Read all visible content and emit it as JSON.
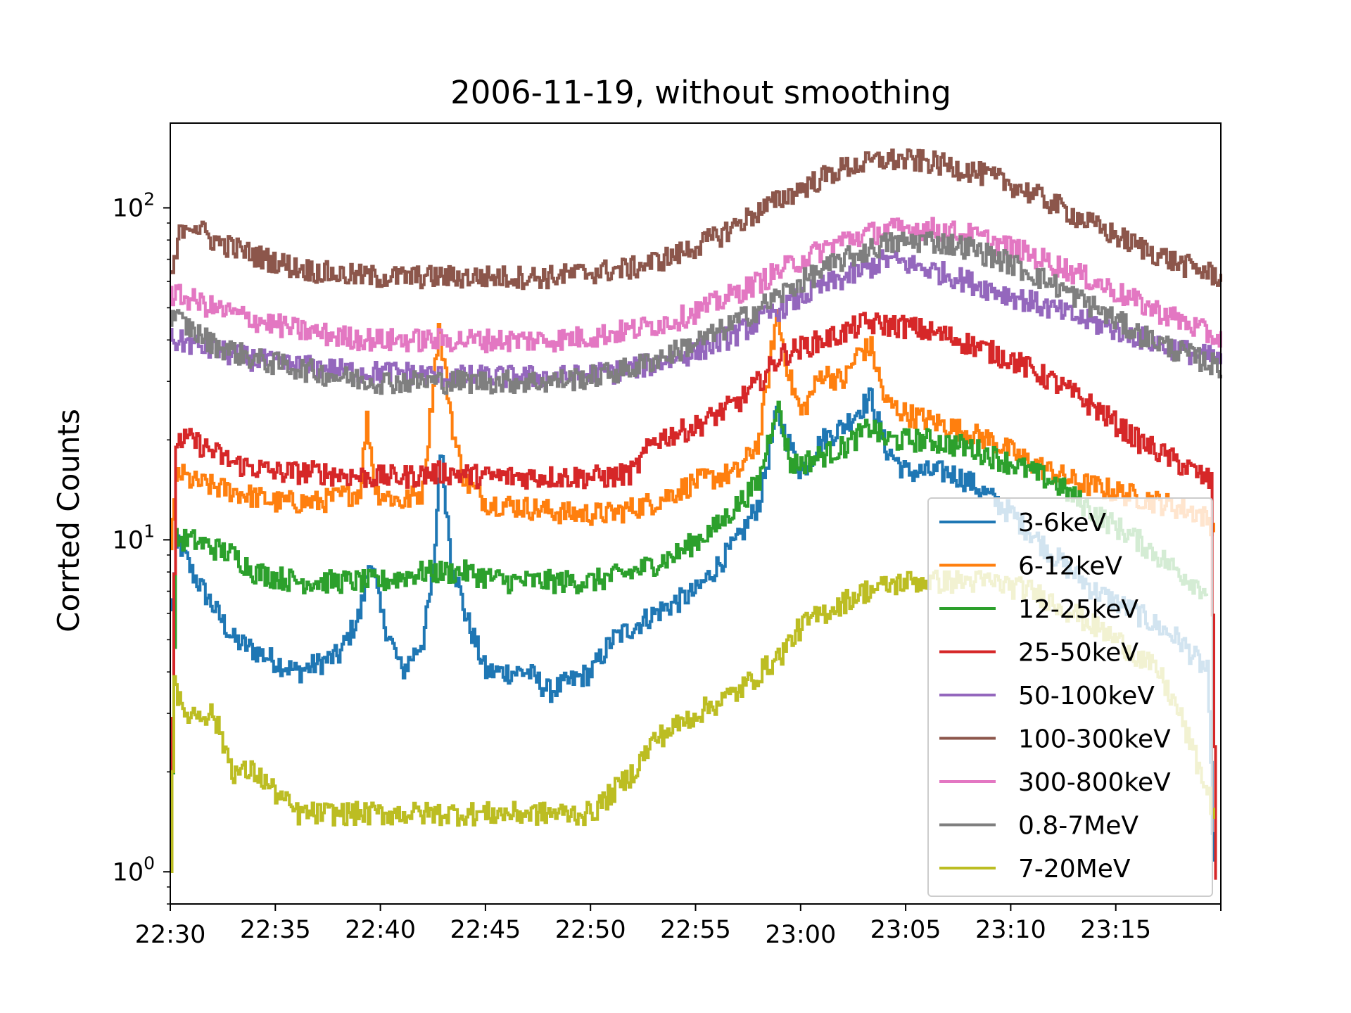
{
  "chart_data": {
    "type": "line",
    "title": "2006-11-19, without smoothing",
    "xlabel": "",
    "ylabel": "Corrted Counts",
    "y_scale": "log",
    "ylim": [
      0.8,
      180
    ],
    "xlim": [
      "22:30",
      "23:20"
    ],
    "x_tick_labels": [
      "22:30",
      "22:35",
      "22:40",
      "22:45",
      "22:50",
      "22:55",
      "23:00",
      "23:05",
      "23:10",
      "23:15"
    ],
    "y_tick_labels": [
      {
        "base": "10",
        "exp": "0",
        "value": 1
      },
      {
        "base": "10",
        "exp": "1",
        "value": 10
      },
      {
        "base": "10",
        "exp": "2",
        "value": 100
      }
    ],
    "grid": false,
    "legend_position": "lower-right",
    "series": [
      {
        "name": "3-6keV",
        "color": "#1f77b4",
        "points": [
          [
            "22:30",
            6
          ],
          [
            "22:30:20",
            10
          ],
          [
            "22:31",
            8
          ],
          [
            "22:33",
            5
          ],
          [
            "22:36",
            4
          ],
          [
            "22:38",
            4.5
          ],
          [
            "22:39",
            6
          ],
          [
            "22:39:30",
            9
          ],
          [
            "22:40",
            6
          ],
          [
            "22:41",
            4
          ],
          [
            "22:42",
            5
          ],
          [
            "22:42:30",
            8
          ],
          [
            "22:42:50",
            19
          ],
          [
            "22:43:20",
            9
          ],
          [
            "22:44",
            6
          ],
          [
            "22:45",
            4
          ],
          [
            "22:47",
            4
          ],
          [
            "22:48",
            3.5
          ],
          [
            "22:50",
            4
          ],
          [
            "22:51",
            5
          ],
          [
            "22:53",
            6
          ],
          [
            "22:55",
            7
          ],
          [
            "22:57",
            10
          ],
          [
            "22:58",
            13
          ],
          [
            "22:58:50",
            24
          ],
          [
            "22:59:30",
            19
          ],
          [
            "23:00",
            16
          ],
          [
            "23:01",
            20
          ],
          [
            "23:02",
            22
          ],
          [
            "23:03:20",
            27
          ],
          [
            "23:04",
            19
          ],
          [
            "23:05",
            16
          ],
          [
            "23:07",
            16
          ],
          [
            "23:08",
            15
          ],
          [
            "23:10",
            12
          ],
          [
            "23:12",
            9
          ],
          [
            "23:14",
            7
          ],
          [
            "23:16",
            6
          ],
          [
            "23:18",
            5
          ],
          [
            "23:19:20",
            4
          ],
          [
            "23:19:40",
            1
          ]
        ]
      },
      {
        "name": "6-12keV",
        "color": "#ff7f0e",
        "points": [
          [
            "22:30",
            10
          ],
          [
            "22:30:20",
            16
          ],
          [
            "22:31",
            15
          ],
          [
            "22:33",
            14
          ],
          [
            "22:35",
            13
          ],
          [
            "22:37",
            13
          ],
          [
            "22:39",
            14
          ],
          [
            "22:39:20",
            23
          ],
          [
            "22:39:45",
            14
          ],
          [
            "22:41",
            13
          ],
          [
            "22:42",
            14
          ],
          [
            "22:42:45",
            44
          ],
          [
            "22:43:30",
            20
          ],
          [
            "22:44",
            15
          ],
          [
            "22:45",
            13
          ],
          [
            "22:47",
            12.5
          ],
          [
            "22:49",
            12
          ],
          [
            "22:51",
            12
          ],
          [
            "22:53",
            13
          ],
          [
            "22:55",
            15
          ],
          [
            "22:57",
            16
          ],
          [
            "22:58",
            20
          ],
          [
            "22:58:50",
            48
          ],
          [
            "22:59:30",
            30
          ],
          [
            "23:00",
            24
          ],
          [
            "23:01",
            32
          ],
          [
            "23:02",
            30
          ],
          [
            "23:02:45",
            37
          ],
          [
            "23:03:20",
            38
          ],
          [
            "23:04",
            26
          ],
          [
            "23:05",
            24
          ],
          [
            "23:07",
            22
          ],
          [
            "23:09",
            20
          ],
          [
            "23:11",
            17
          ],
          [
            "23:13",
            15
          ],
          [
            "23:15",
            14
          ],
          [
            "23:17",
            13
          ],
          [
            "23:19",
            12
          ],
          [
            "23:19:40",
            11
          ]
        ]
      },
      {
        "name": "12-25keV",
        "color": "#2ca02c",
        "points": [
          [
            "22:30",
            1
          ],
          [
            "22:30:15",
            10
          ],
          [
            "22:31",
            10
          ],
          [
            "22:33",
            9
          ],
          [
            "22:34",
            8
          ],
          [
            "22:36",
            7.5
          ],
          [
            "22:38",
            7.5
          ],
          [
            "22:40",
            7.5
          ],
          [
            "22:42",
            8
          ],
          [
            "22:44",
            8
          ],
          [
            "22:46",
            7.5
          ],
          [
            "22:48",
            7.5
          ],
          [
            "22:50",
            7.5
          ],
          [
            "22:52",
            8
          ],
          [
            "22:54",
            9
          ],
          [
            "22:56",
            11
          ],
          [
            "22:58",
            15
          ],
          [
            "22:58:50",
            26
          ],
          [
            "22:59:30",
            17
          ],
          [
            "23:00",
            17
          ],
          [
            "23:01",
            18
          ],
          [
            "23:02",
            19
          ],
          [
            "23:03:20",
            22
          ],
          [
            "23:04",
            20
          ],
          [
            "23:06",
            20
          ],
          [
            "23:08",
            19
          ],
          [
            "23:10",
            17
          ],
          [
            "23:12",
            15
          ],
          [
            "23:14",
            12
          ],
          [
            "23:16",
            10
          ],
          [
            "23:18",
            8
          ],
          [
            "23:19:20",
            7
          ]
        ]
      },
      {
        "name": "25-50keV",
        "color": "#d62728",
        "points": [
          [
            "22:30",
            1
          ],
          [
            "22:30:15",
            20
          ],
          [
            "22:31",
            20
          ],
          [
            "22:33",
            17
          ],
          [
            "22:35",
            16
          ],
          [
            "22:37",
            16
          ],
          [
            "22:39",
            15.5
          ],
          [
            "22:41",
            15.5
          ],
          [
            "22:43",
            16
          ],
          [
            "22:45",
            15.5
          ],
          [
            "22:47",
            15.5
          ],
          [
            "22:49",
            15.5
          ],
          [
            "22:51",
            15.5
          ],
          [
            "22:52",
            16
          ],
          [
            "22:53",
            20
          ],
          [
            "22:55",
            22
          ],
          [
            "22:57",
            26
          ],
          [
            "22:58",
            30
          ],
          [
            "22:59",
            36
          ],
          [
            "23:00",
            38
          ],
          [
            "23:01",
            40
          ],
          [
            "23:02",
            42
          ],
          [
            "23:03",
            45
          ],
          [
            "23:05",
            44
          ],
          [
            "23:07",
            41
          ],
          [
            "23:08",
            39
          ],
          [
            "23:10",
            35
          ],
          [
            "23:12",
            30
          ],
          [
            "23:14",
            25
          ],
          [
            "23:16",
            20
          ],
          [
            "23:18",
            17
          ],
          [
            "23:19:30",
            15
          ],
          [
            "23:19:45",
            1
          ]
        ]
      },
      {
        "name": "50-100keV",
        "color": "#9467bd",
        "points": [
          [
            "22:30",
            40
          ],
          [
            "22:31",
            39
          ],
          [
            "22:33",
            36
          ],
          [
            "22:35",
            34
          ],
          [
            "22:37",
            33
          ],
          [
            "22:39",
            32
          ],
          [
            "22:41",
            32
          ],
          [
            "22:43",
            31
          ],
          [
            "22:45",
            31
          ],
          [
            "22:47",
            31
          ],
          [
            "22:49",
            31
          ],
          [
            "22:51",
            32
          ],
          [
            "22:53",
            34
          ],
          [
            "22:55",
            37
          ],
          [
            "22:57",
            42
          ],
          [
            "22:59",
            50
          ],
          [
            "23:01",
            58
          ],
          [
            "23:03",
            65
          ],
          [
            "23:04",
            70
          ],
          [
            "23:05",
            68
          ],
          [
            "23:07",
            63
          ],
          [
            "23:09",
            57
          ],
          [
            "23:11",
            52
          ],
          [
            "23:13",
            47
          ],
          [
            "23:15",
            43
          ],
          [
            "23:17",
            39
          ],
          [
            "23:19",
            36
          ],
          [
            "23:20",
            35
          ]
        ]
      },
      {
        "name": "100-300keV",
        "color": "#8c564b",
        "points": [
          [
            "22:30",
            60
          ],
          [
            "22:30:30",
            88
          ],
          [
            "22:31",
            90
          ],
          [
            "22:32",
            80
          ],
          [
            "22:34",
            72
          ],
          [
            "22:36",
            66
          ],
          [
            "22:38",
            63
          ],
          [
            "22:40",
            62
          ],
          [
            "22:42",
            62
          ],
          [
            "22:44",
            62
          ],
          [
            "22:46",
            62
          ],
          [
            "22:48",
            62
          ],
          [
            "22:50",
            64
          ],
          [
            "22:52",
            66
          ],
          [
            "22:54",
            72
          ],
          [
            "22:56",
            82
          ],
          [
            "22:58",
            98
          ],
          [
            "23:00",
            115
          ],
          [
            "23:02",
            132
          ],
          [
            "23:04",
            140
          ],
          [
            "23:06",
            138
          ],
          [
            "23:08",
            130
          ],
          [
            "23:10",
            118
          ],
          [
            "23:12",
            103
          ],
          [
            "23:14",
            88
          ],
          [
            "23:16",
            77
          ],
          [
            "23:18",
            68
          ],
          [
            "23:20",
            62
          ]
        ]
      },
      {
        "name": "300-800keV",
        "color": "#e377c2",
        "points": [
          [
            "22:30",
            55
          ],
          [
            "22:31",
            53
          ],
          [
            "22:32",
            50
          ],
          [
            "22:34",
            46
          ],
          [
            "22:36",
            43
          ],
          [
            "22:38",
            41
          ],
          [
            "22:40",
            40
          ],
          [
            "22:42",
            40
          ],
          [
            "22:44",
            40
          ],
          [
            "22:46",
            40
          ],
          [
            "22:48",
            40
          ],
          [
            "22:50",
            41
          ],
          [
            "22:52",
            43
          ],
          [
            "22:54",
            46
          ],
          [
            "22:56",
            52
          ],
          [
            "22:58",
            60
          ],
          [
            "23:00",
            70
          ],
          [
            "23:02",
            80
          ],
          [
            "23:04",
            86
          ],
          [
            "23:06",
            87
          ],
          [
            "23:08",
            83
          ],
          [
            "23:10",
            76
          ],
          [
            "23:12",
            68
          ],
          [
            "23:14",
            60
          ],
          [
            "23:16",
            52
          ],
          [
            "23:18",
            46
          ],
          [
            "23:20",
            40
          ]
        ]
      },
      {
        "name": "0.8-7MeV",
        "color": "#7f7f7f",
        "points": [
          [
            "22:30",
            48
          ],
          [
            "22:31",
            43
          ],
          [
            "22:32",
            39
          ],
          [
            "22:34",
            35
          ],
          [
            "22:36",
            33
          ],
          [
            "22:38",
            31
          ],
          [
            "22:40",
            30
          ],
          [
            "22:42",
            30
          ],
          [
            "22:44",
            30
          ],
          [
            "22:46",
            30
          ],
          [
            "22:48",
            30
          ],
          [
            "22:50",
            31
          ],
          [
            "22:52",
            33
          ],
          [
            "22:54",
            37
          ],
          [
            "22:56",
            42
          ],
          [
            "22:58",
            50
          ],
          [
            "23:00",
            60
          ],
          [
            "23:02",
            70
          ],
          [
            "23:04",
            78
          ],
          [
            "23:06",
            80
          ],
          [
            "23:08",
            76
          ],
          [
            "23:10",
            68
          ],
          [
            "23:12",
            59
          ],
          [
            "23:14",
            50
          ],
          [
            "23:16",
            42
          ],
          [
            "23:18",
            37
          ],
          [
            "23:20",
            33
          ]
        ]
      },
      {
        "name": "7-20MeV",
        "color": "#bcbd22",
        "points": [
          [
            "22:30",
            1
          ],
          [
            "22:30:10",
            4
          ],
          [
            "22:30:30",
            3
          ],
          [
            "22:32",
            3
          ],
          [
            "22:33",
            2
          ],
          [
            "22:34",
            2
          ],
          [
            "22:36",
            1.5
          ],
          [
            "22:38",
            1.5
          ],
          [
            "22:40",
            1.5
          ],
          [
            "22:42",
            1.5
          ],
          [
            "22:44",
            1.5
          ],
          [
            "22:46",
            1.5
          ],
          [
            "22:48",
            1.5
          ],
          [
            "22:50",
            1.5
          ],
          [
            "22:52",
            2
          ],
          [
            "22:53",
            2.5
          ],
          [
            "22:55",
            3
          ],
          [
            "22:57",
            3.5
          ],
          [
            "22:59",
            4.5
          ],
          [
            "23:00",
            5.5
          ],
          [
            "23:01",
            6
          ],
          [
            "23:02",
            6.5
          ],
          [
            "23:03",
            7
          ],
          [
            "23:05",
            7.5
          ],
          [
            "23:07",
            7.5
          ],
          [
            "23:09",
            7.5
          ],
          [
            "23:11",
            7
          ],
          [
            "23:13",
            6
          ],
          [
            "23:15",
            5
          ],
          [
            "23:17",
            4
          ],
          [
            "23:18",
            3
          ],
          [
            "23:19",
            2
          ],
          [
            "23:19:40",
            1.5
          ]
        ]
      }
    ]
  }
}
